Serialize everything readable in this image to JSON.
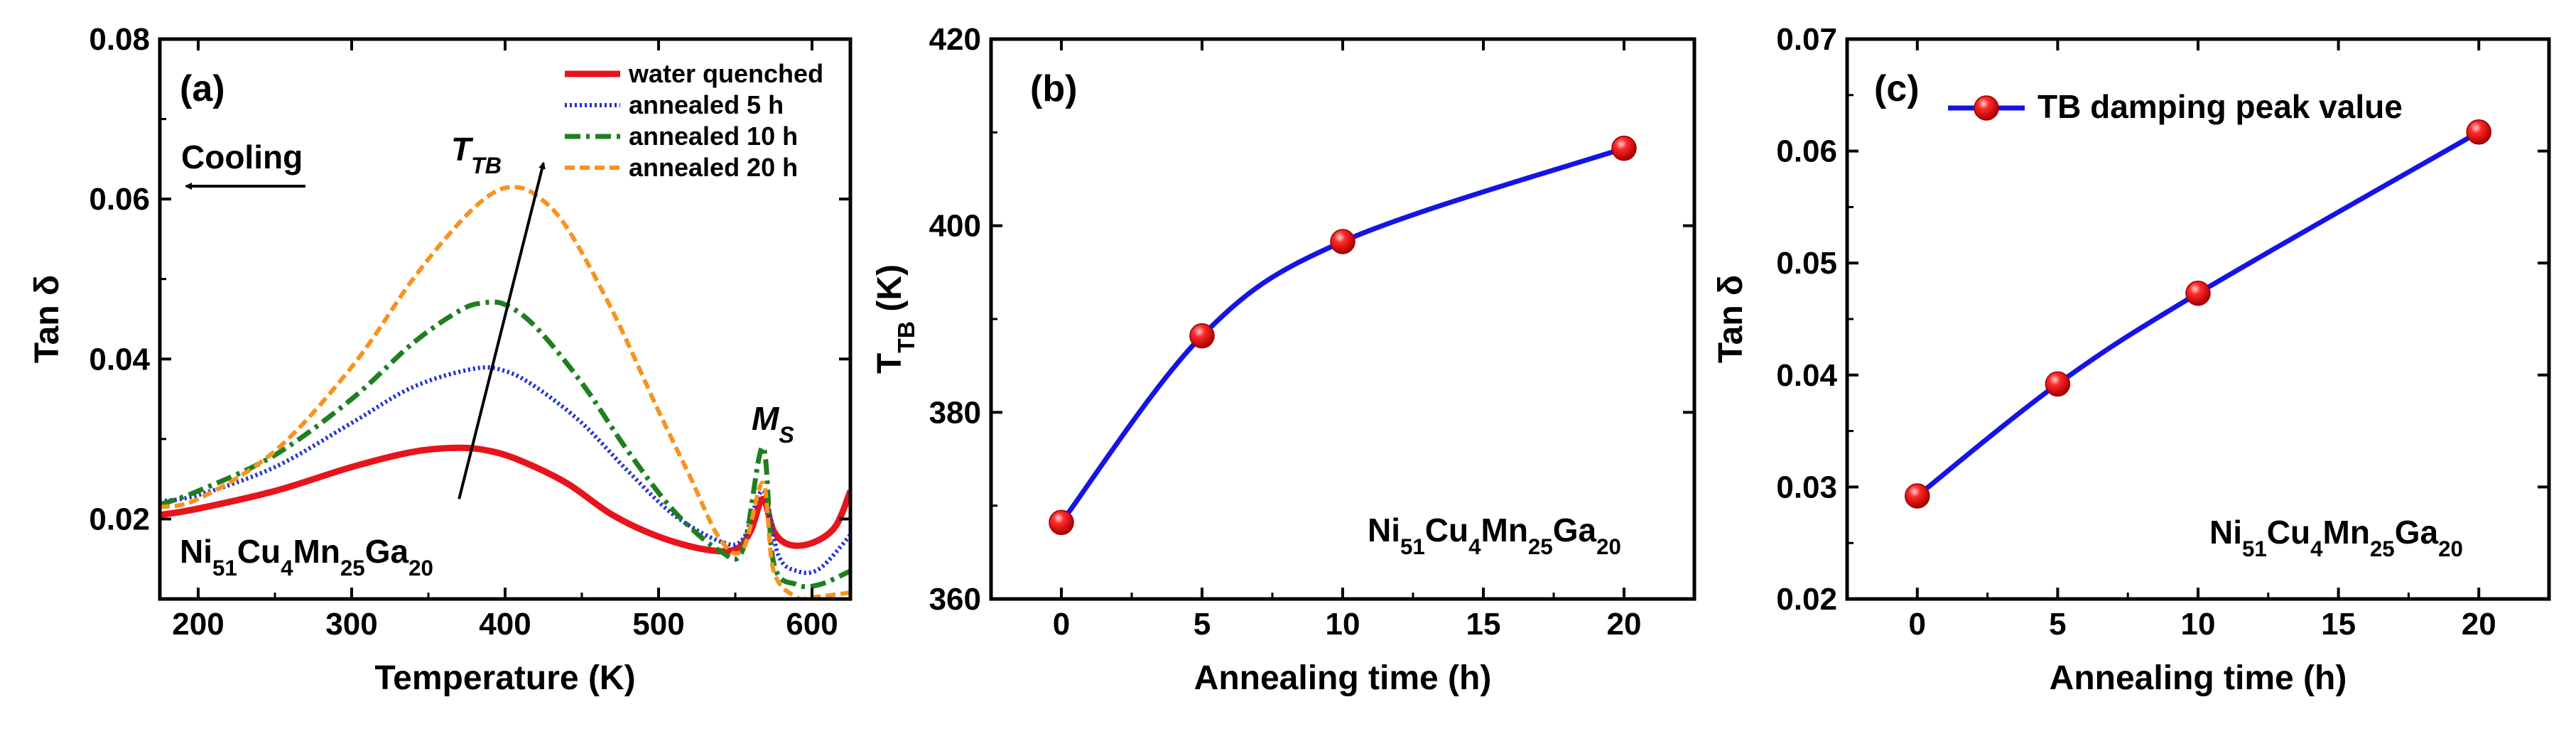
{
  "colors": {
    "water_quenched": "#e8141b",
    "annealed_5h": "#1f2fd6",
    "annealed_10h": "#1f7f1f",
    "annealed_20h": "#f7931e",
    "line_b_c": "#1414e6",
    "marker": "#e8141b"
  },
  "chart_data": [
    {
      "panel": "(a)",
      "type": "line",
      "xlabel": "Temperature (K)",
      "ylabel": "Tan δ",
      "xlim": [
        175,
        625
      ],
      "ylim": [
        0.01,
        0.08
      ],
      "xticks": [
        200,
        300,
        400,
        500,
        600
      ],
      "yticks": [
        0.02,
        0.04,
        0.06,
        0.08
      ],
      "ytick_labels": [
        "0.02",
        "0.04",
        "0.06",
        "0.08"
      ],
      "series": [
        {
          "name": "water quenched",
          "style": "solid",
          "x": [
            175,
            200,
            250,
            300,
            340,
            370,
            390,
            410,
            440,
            470,
            500,
            530,
            550,
            560,
            568,
            575,
            585,
            600,
            615,
            625
          ],
          "y": [
            0.0205,
            0.0213,
            0.0235,
            0.0265,
            0.0284,
            0.0289,
            0.0285,
            0.0273,
            0.0245,
            0.0205,
            0.0178,
            0.0162,
            0.0162,
            0.0185,
            0.0225,
            0.0185,
            0.0168,
            0.017,
            0.019,
            0.0235
          ]
        },
        {
          "name": "annealed 5 h",
          "style": "dotted",
          "x": [
            175,
            200,
            250,
            300,
            340,
            380,
            400,
            420,
            450,
            480,
            510,
            540,
            555,
            568,
            578,
            590,
            605,
            625
          ],
          "y": [
            0.0222,
            0.023,
            0.0265,
            0.032,
            0.0365,
            0.0388,
            0.0385,
            0.0365,
            0.032,
            0.026,
            0.0205,
            0.0172,
            0.0175,
            0.0235,
            0.0155,
            0.0135,
            0.0138,
            0.018
          ]
        },
        {
          "name": "annealed 10 h",
          "style": "dashdot",
          "x": [
            175,
            200,
            250,
            300,
            340,
            370,
            385,
            400,
            420,
            450,
            480,
            510,
            540,
            555,
            568,
            575,
            590,
            605,
            625
          ],
          "y": [
            0.0218,
            0.0235,
            0.028,
            0.035,
            0.042,
            0.046,
            0.047,
            0.0468,
            0.044,
            0.037,
            0.0285,
            0.021,
            0.016,
            0.0162,
            0.029,
            0.0145,
            0.0118,
            0.0118,
            0.0135
          ]
        },
        {
          "name": "annealed 20 h",
          "style": "dashed",
          "x": [
            175,
            200,
            250,
            300,
            340,
            370,
            390,
            405,
            420,
            440,
            470,
            500,
            520,
            540,
            555,
            568,
            575,
            590,
            600,
            625
          ],
          "y": [
            0.0215,
            0.0225,
            0.0285,
            0.039,
            0.05,
            0.057,
            0.0605,
            0.0615,
            0.0605,
            0.0565,
            0.046,
            0.0335,
            0.0255,
            0.0175,
            0.0162,
            0.0245,
            0.0135,
            0.0102,
            0.0102,
            0.0108
          ]
        }
      ],
      "legend": [
        "water quenched",
        "annealed 5 h",
        "annealed 10 h",
        "annealed 20 h"
      ],
      "legend_position": "top-right",
      "annotations": {
        "panel_label": "(a)",
        "cooling": "Cooling",
        "ttb_main": "T",
        "ttb_sub": "TB",
        "ms_main": "M",
        "ms_sub": "S",
        "composition_label": "Ni51Cu4Mn25Ga20",
        "arrow_from": [
          370,
          0.0225
        ],
        "arrow_to": [
          425,
          0.0645
        ]
      }
    },
    {
      "panel": "(b)",
      "type": "line",
      "xlabel": "Annealing time (h)",
      "ylabel_main": "T",
      "ylabel_sub": "TB",
      "ylabel_unit": " (K)",
      "xlim": [
        -2.5,
        22.5
      ],
      "ylim": [
        360,
        420
      ],
      "xticks": [
        0,
        5,
        10,
        15,
        20
      ],
      "yticks": [
        360,
        380,
        400,
        420
      ],
      "ytick_labels": [
        "360",
        "380",
        "400",
        "420"
      ],
      "x": [
        0,
        5,
        10,
        20
      ],
      "y": [
        368.2,
        388.2,
        398.3,
        408.3
      ],
      "composition_label": "Ni51Cu4Mn25Ga20",
      "panel_label": "(b)"
    },
    {
      "panel": "(c)",
      "type": "line",
      "xlabel": "Annealing time (h)",
      "ylabel": "Tan δ",
      "xlim": [
        -2.5,
        22.5
      ],
      "ylim": [
        0.02,
        0.07
      ],
      "xticks": [
        0,
        5,
        10,
        15,
        20
      ],
      "yticks": [
        0.02,
        0.03,
        0.04,
        0.05,
        0.06,
        0.07
      ],
      "ytick_labels": [
        "0.02",
        "0.03",
        "0.04",
        "0.05",
        "0.06",
        "0.07"
      ],
      "x": [
        0,
        5,
        10,
        20
      ],
      "y": [
        0.0292,
        0.0392,
        0.0473,
        0.0617
      ],
      "legend": [
        "TB damping peak value"
      ],
      "legend_position": "top-left",
      "composition_label": "Ni51Cu4Mn25Ga20",
      "panel_label": "(c)"
    }
  ]
}
